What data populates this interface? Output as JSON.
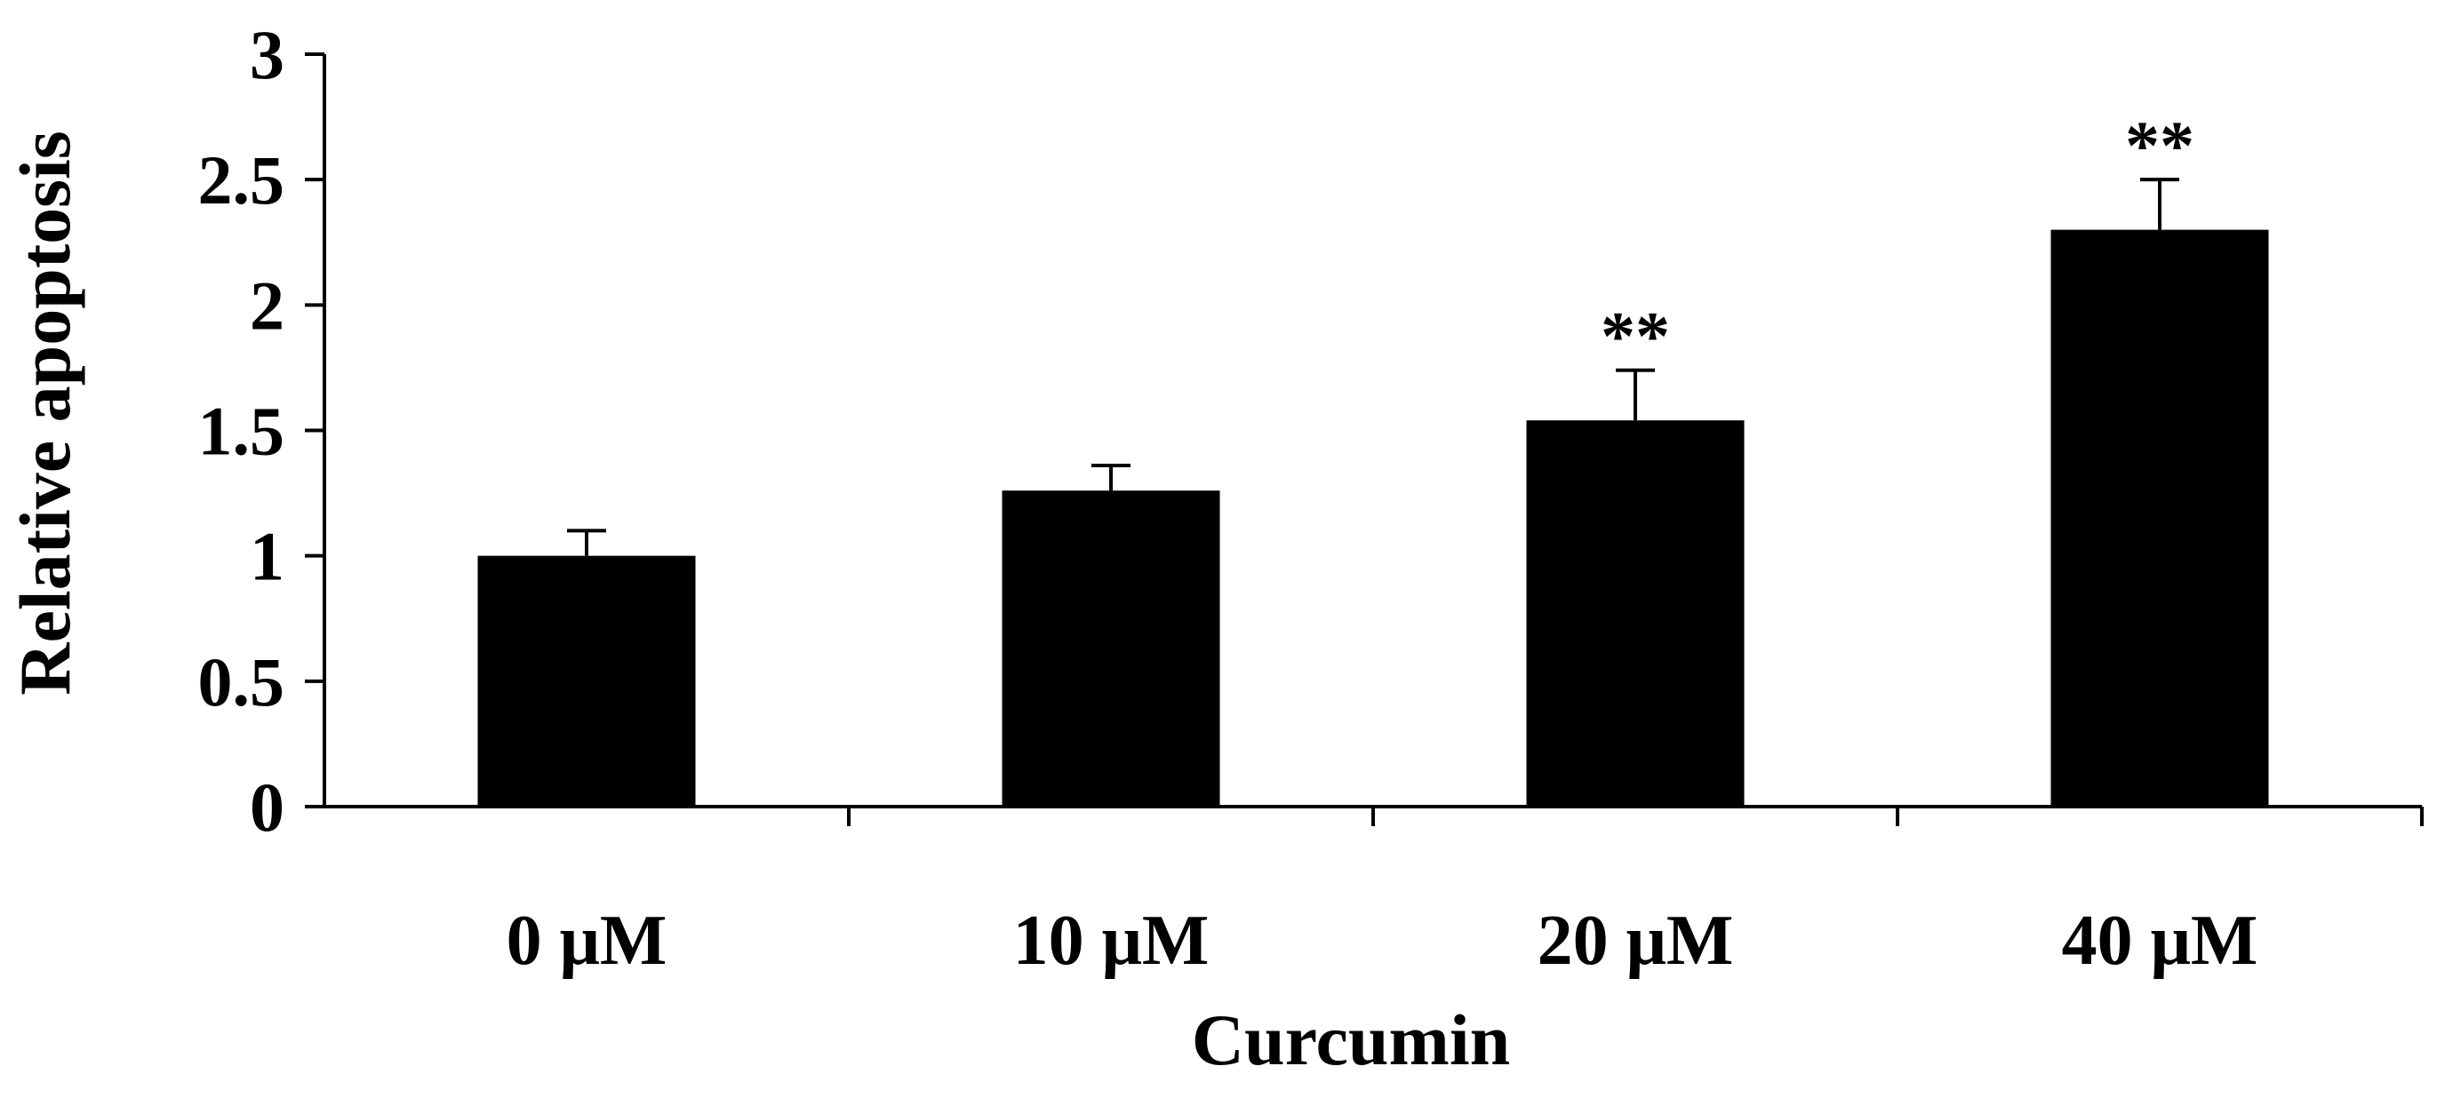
{
  "chart_data": {
    "type": "bar",
    "title": "",
    "xlabel": "Curcumin",
    "ylabel": "Relative apoptosis",
    "ylim": [
      0,
      3
    ],
    "yticks": [
      "0",
      "0.5",
      "1",
      "1.5",
      "2",
      "2.5",
      "3"
    ],
    "categories": [
      "0 μM",
      "10 μM",
      "20 μM",
      "40 μM"
    ],
    "values": [
      1.0,
      1.26,
      1.54,
      2.3
    ],
    "errors": [
      0.1,
      0.1,
      0.2,
      0.2
    ],
    "significance": [
      "",
      "",
      "**",
      "**"
    ],
    "bar_color": "#000000",
    "grid": false,
    "legend": "none"
  }
}
